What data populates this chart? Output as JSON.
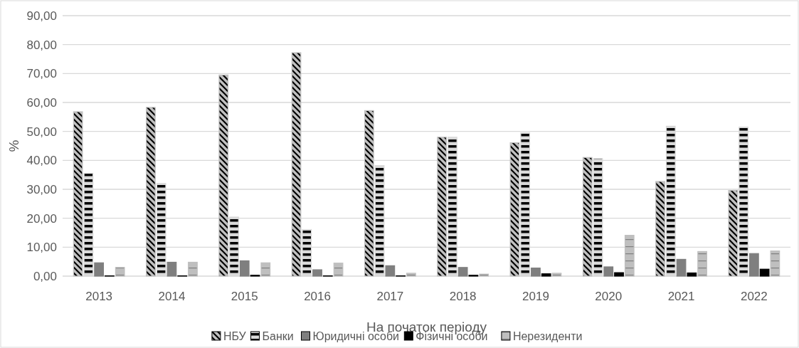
{
  "chart_data": {
    "type": "bar",
    "xlabel": "На початок періоду",
    "ylabel": "%",
    "categories": [
      "2013",
      "2014",
      "2015",
      "2016",
      "2017",
      "2018",
      "2019",
      "2020",
      "2021",
      "2022"
    ],
    "series": [
      {
        "name": "НБУ",
        "color": "#c0c0c0",
        "values": [
          56.8,
          58.3,
          69.5,
          77.2,
          57.2,
          48.0,
          46.1,
          41.0,
          32.7,
          29.6
        ]
      },
      {
        "name": "Банки",
        "color": "#d9d9d9",
        "values": [
          35.5,
          32.0,
          20.4,
          16.1,
          38.2,
          48.0,
          49.5,
          40.6,
          51.8,
          51.5
        ]
      },
      {
        "name": "Юридичні особи",
        "color": "#7f7f7f",
        "values": [
          4.6,
          4.8,
          5.3,
          2.2,
          3.6,
          3.0,
          2.8,
          3.2,
          5.8,
          7.8
        ]
      },
      {
        "name": "Фізичні особи",
        "color": "#000000",
        "values": [
          0.1,
          0.1,
          0.3,
          0.1,
          0.1,
          0.3,
          0.8,
          1.2,
          1.1,
          2.4
        ]
      },
      {
        "name": "Нерезиденти",
        "color": "#bfbfbf",
        "values": [
          3.0,
          4.8,
          4.6,
          4.5,
          1.0,
          0.7,
          1.0,
          14.1,
          8.5,
          8.7
        ]
      }
    ],
    "ylim": [
      0,
      90
    ],
    "yticks": [
      {
        "value": 0,
        "label": "0,00"
      },
      {
        "value": 10,
        "label": "10,00"
      },
      {
        "value": 20,
        "label": "20,00"
      },
      {
        "value": 30,
        "label": "30,00"
      },
      {
        "value": 40,
        "label": "40,00"
      },
      {
        "value": 50,
        "label": "50,00"
      },
      {
        "value": 60,
        "label": "60,00"
      },
      {
        "value": 70,
        "label": "70,00"
      },
      {
        "value": 80,
        "label": "80,00"
      },
      {
        "value": 90,
        "label": "90,00"
      }
    ],
    "grid": "y",
    "legend": "bottom"
  }
}
